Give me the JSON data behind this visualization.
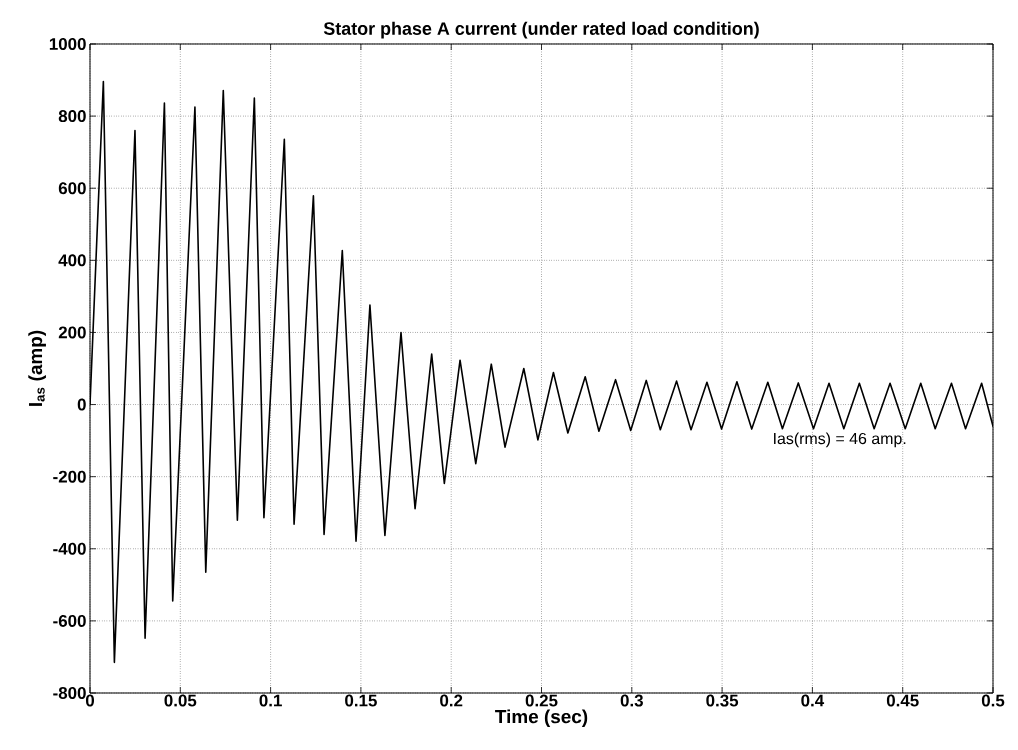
{
  "chart_data": {
    "type": "line",
    "title": "Stator phase A current (under rated load condition)",
    "xlabel": "Time (sec)",
    "ylabel": "I$_{as}$ (amp)",
    "annotations": [
      "Ias(rms) = 46 amp."
    ],
    "x": [
      0,
      0.0074,
      0.0135,
      0.0249,
      0.0305,
      0.0412,
      0.0458,
      0.0581,
      0.0641,
      0.0738,
      0.0816,
      0.091,
      0.0963,
      0.1076,
      0.113,
      0.1237,
      0.1296,
      0.1397,
      0.1473,
      0.155,
      0.1633,
      0.1722,
      0.18,
      0.1892,
      0.1962,
      0.2049,
      0.2136,
      0.2222,
      0.2298,
      0.2402,
      0.248,
      0.2566,
      0.2646,
      0.2742,
      0.2818,
      0.291,
      0.2994,
      0.308,
      0.3158,
      0.3248,
      0.3328,
      0.3416,
      0.3497,
      0.3582,
      0.3664,
      0.3753,
      0.3834,
      0.3922,
      0.4006,
      0.4092,
      0.4174,
      0.426,
      0.4342,
      0.443,
      0.4514,
      0.46,
      0.468,
      0.477,
      0.4848,
      0.4937,
      0.5
    ],
    "series": [
      {
        "color": "#000000",
        "values": [
          0,
          896,
          -715,
          760,
          -648,
          836,
          -545,
          825,
          -465,
          871,
          -321,
          850,
          -314,
          736,
          -332,
          579,
          -360,
          427,
          -379,
          276,
          -363,
          200,
          -289,
          140,
          -219,
          123,
          -164,
          112,
          -118,
          100,
          -98,
          89,
          -79,
          77,
          -74,
          69,
          -72,
          67,
          -70,
          65,
          -70,
          62,
          -68,
          63,
          -68,
          62,
          -67,
          60,
          -67,
          59,
          -67,
          59,
          -67,
          59,
          -67,
          59,
          -67,
          59,
          -67,
          59,
          -60
        ]
      }
    ],
    "xlim": [
      0,
      0.5
    ],
    "ylim": [
      -800,
      1000
    ],
    "xticks": [
      0,
      0.05,
      0.1,
      0.15,
      0.2,
      0.25,
      0.3,
      0.35,
      0.4,
      0.45,
      0.5
    ],
    "yticks": [
      -800,
      -600,
      -400,
      -200,
      0,
      200,
      400,
      600,
      800,
      1000
    ],
    "grid": true,
    "line_style": "solid"
  }
}
